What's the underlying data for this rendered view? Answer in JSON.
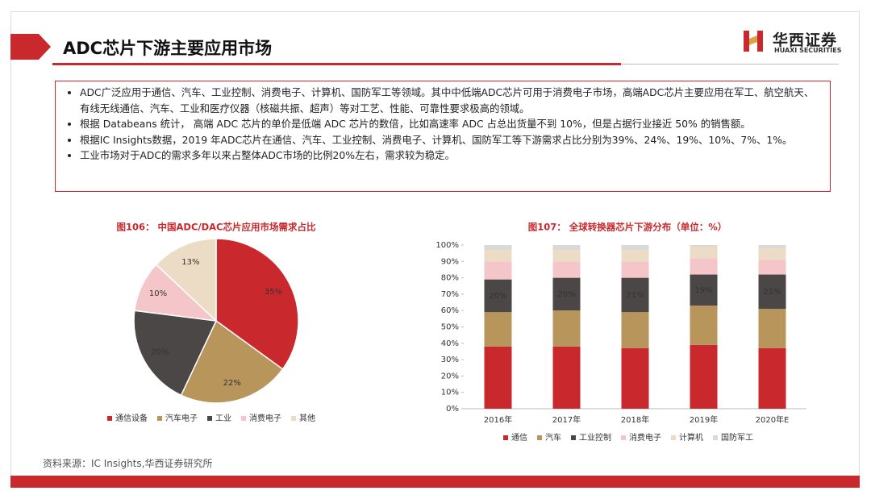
{
  "header": {
    "title": "ADC芯片下游主要应用市场",
    "logo": "华西证券",
    "logo_en": "HUAXI SECURITIES"
  },
  "bullets": [
    "ADC广泛应用于通信、汽车、工业控制、消费电子、计算机、国防军工等领域。其中中低端ADC芯片可用于消费电子市场，高端ADC芯片主要应用在军工、航空航天、有线无线通信、汽车、工业和医疗仪器（核磁共振、超声）等对工艺、性能、可靠性要求极高的领域。",
    "根据 Databeans 统计， 高端 ADC 芯片的单价是低端 ADC 芯片的数倍，比如高速率 ADC 占总出货量不到 10%，但是占据行业接近 50% 的销售额。",
    "根据IC Insights数据，2019 年ADC芯片在通信、汽车、工业控制、消费电子、计算机、国防军工等下游需求占比分别为39%、24%、19%、10%、7%、1%。",
    "工业市场对于ADC的需求多年以来占整体ADC市场的比例20%左右，需求较为稳定。"
  ],
  "chart_data": [
    {
      "type": "pie",
      "title": "图106： 中国ADC/DAC芯片应用市场需求占比",
      "categories": [
        "通信设备",
        "汽车电子",
        "工业",
        "消费电子",
        "其他"
      ],
      "values": [
        35,
        22,
        20,
        10,
        13
      ],
      "value_labels": [
        "35%",
        "22%",
        "20%",
        "10%",
        "13%"
      ],
      "colors": [
        "#c9282d",
        "#b8955a",
        "#4a4746",
        "#f4c6ca",
        "#ecdcc5"
      ],
      "legend": "bottom"
    },
    {
      "type": "stacked-bar",
      "title": "图107： 全球转换器芯片下游分布（单位：%）",
      "categories": [
        "2016年",
        "2017年",
        "2018年",
        "2019年",
        "2020年E"
      ],
      "series": [
        {
          "name": "通信",
          "color": "#c9282d",
          "values": [
            38,
            38,
            37,
            39,
            37
          ]
        },
        {
          "name": "汽车",
          "color": "#b8955a",
          "values": [
            21,
            22,
            22,
            24,
            24
          ]
        },
        {
          "name": "工业控制",
          "color": "#4a4746",
          "values": [
            20,
            20,
            21,
            19,
            21
          ],
          "value_labels": [
            "20%",
            "20%",
            "21%",
            "19%",
            "21%"
          ]
        },
        {
          "name": "消费电子",
          "color": "#f4c6ca",
          "values": [
            11,
            10,
            10,
            10,
            9
          ]
        },
        {
          "name": "计算机",
          "color": "#ecdcc5",
          "values": [
            7,
            7,
            7,
            7,
            7
          ]
        },
        {
          "name": "国防军工",
          "color": "#d9d9d9",
          "values": [
            3,
            3,
            3,
            1,
            2
          ]
        }
      ],
      "ylim": [
        0,
        100
      ],
      "yticks": [
        {
          "value": 0,
          "label": "0%"
        },
        {
          "value": 10,
          "label": "10%"
        },
        {
          "value": 20,
          "label": "20%"
        },
        {
          "value": 30,
          "label": "30%"
        },
        {
          "value": 40,
          "label": "40%"
        },
        {
          "value": 50,
          "label": "50%"
        },
        {
          "value": 60,
          "label": "60%"
        },
        {
          "value": 70,
          "label": "70%"
        },
        {
          "value": 80,
          "label": "80%"
        },
        {
          "value": 90,
          "label": "90%"
        },
        {
          "value": 100,
          "label": "100%"
        }
      ],
      "grid": false,
      "legend": "bottom"
    }
  ],
  "source": "资料来源：IC Insights,华西证券研究所"
}
